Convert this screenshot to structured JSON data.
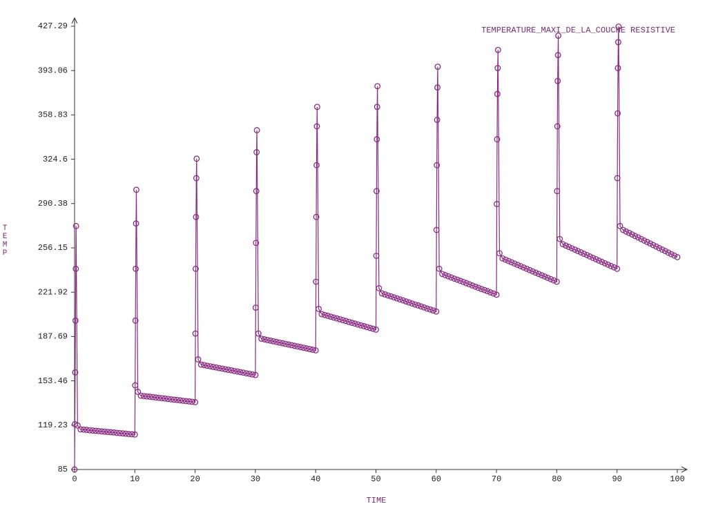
{
  "chart_data": {
    "type": "line",
    "title": "TEMPERATURE_MAXI_DE_LA_COUCHE RESISTIVE",
    "x_label": "TIME",
    "y_label": "TEMP",
    "xlim": [
      0,
      100
    ],
    "xticks": [
      0,
      10,
      20,
      30,
      40,
      50,
      60,
      70,
      80,
      90,
      100
    ],
    "ylim": [
      85,
      427.29
    ],
    "yticks": [
      85,
      119.23,
      153.46,
      187.69,
      221.92,
      256.15,
      290.38,
      324.6,
      358.83,
      393.06,
      427.29
    ],
    "x": [
      0,
      0.05,
      0.1,
      0.15,
      0.2,
      0.25,
      0.5,
      1,
      1.5,
      2,
      2.5,
      3,
      3.5,
      4,
      4.5,
      5,
      5.5,
      6,
      6.5,
      7,
      7.5,
      8,
      8.5,
      9,
      9.5,
      10,
      10.05,
      10.1,
      10.15,
      10.2,
      10.25,
      10.5,
      11,
      11.5,
      12,
      12.5,
      13,
      13.5,
      14,
      14.5,
      15,
      15.5,
      16,
      16.5,
      17,
      17.5,
      18,
      18.5,
      19,
      19.5,
      20,
      20.05,
      20.1,
      20.15,
      20.2,
      20.25,
      20.5,
      21,
      21.5,
      22,
      22.5,
      23,
      23.5,
      24,
      24.5,
      25,
      25.5,
      26,
      26.5,
      27,
      27.5,
      28,
      28.5,
      29,
      29.5,
      30,
      30.05,
      30.1,
      30.15,
      30.2,
      30.25,
      30.5,
      31,
      31.5,
      32,
      32.5,
      33,
      33.5,
      34,
      34.5,
      35,
      35.5,
      36,
      36.5,
      37,
      37.5,
      38,
      38.5,
      39,
      39.5,
      40,
      40.05,
      40.1,
      40.15,
      40.2,
      40.25,
      40.5,
      41,
      41.5,
      42,
      42.5,
      43,
      43.5,
      44,
      44.5,
      45,
      45.5,
      46,
      46.5,
      47,
      47.5,
      48,
      48.5,
      49,
      49.5,
      50,
      50.05,
      50.1,
      50.15,
      50.2,
      50.25,
      50.5,
      51,
      51.5,
      52,
      52.5,
      53,
      53.5,
      54,
      54.5,
      55,
      55.5,
      56,
      56.5,
      57,
      57.5,
      58,
      58.5,
      59,
      59.5,
      60,
      60.05,
      60.1,
      60.15,
      60.2,
      60.25,
      60.5,
      61,
      61.5,
      62,
      62.5,
      63,
      63.5,
      64,
      64.5,
      65,
      65.5,
      66,
      66.5,
      67,
      67.5,
      68,
      68.5,
      69,
      69.5,
      70,
      70.05,
      70.1,
      70.15,
      70.2,
      70.25,
      70.5,
      71,
      71.5,
      72,
      72.5,
      73,
      73.5,
      74,
      74.5,
      75,
      75.5,
      76,
      76.5,
      77,
      77.5,
      78,
      78.5,
      79,
      79.5,
      80,
      80.05,
      80.1,
      80.15,
      80.2,
      80.25,
      80.5,
      81,
      81.5,
      82,
      82.5,
      83,
      83.5,
      84,
      84.5,
      85,
      85.5,
      86,
      86.5,
      87,
      87.5,
      88,
      88.5,
      89,
      89.5,
      90,
      90.05,
      90.1,
      90.15,
      90.2,
      90.25,
      90.5,
      91,
      91.5,
      92,
      92.5,
      93,
      93.5,
      94,
      94.5,
      95,
      95.5,
      96,
      96.5,
      97,
      97.5,
      98,
      98.5,
      99,
      99.5,
      100
    ],
    "series": [
      {
        "name": "TEMPERATURE_MAXI_DE_LA_COUCHE RESISTIVE",
        "color": "#8a2a82",
        "values": [
          85,
          120,
          160,
          200,
          240,
          273,
          119,
          116,
          115.8,
          115.6,
          115.3,
          115.1,
          114.9,
          114.7,
          114.4,
          114.2,
          114,
          113.8,
          113.6,
          113.3,
          113.1,
          112.9,
          112.7,
          112.4,
          112.2,
          112,
          150,
          200,
          240,
          275,
          301,
          145,
          142,
          141.7,
          141.4,
          141.2,
          140.9,
          140.6,
          140.3,
          140.1,
          139.8,
          139.5,
          139.2,
          138.9,
          138.7,
          138.4,
          138.1,
          137.8,
          137.6,
          137.3,
          137,
          190,
          240,
          280,
          310,
          325,
          170,
          166,
          165.6,
          165.1,
          164.7,
          164.2,
          163.8,
          163.3,
          162.9,
          162.4,
          162,
          161.6,
          161.1,
          160.7,
          160.2,
          159.8,
          159.3,
          158.9,
          158.4,
          158,
          210,
          260,
          300,
          330,
          347,
          190,
          186,
          185.5,
          185,
          184.5,
          184,
          183.5,
          183,
          182.5,
          182,
          181.5,
          181,
          180.5,
          180,
          179.5,
          179,
          178.5,
          178,
          177.5,
          177,
          230,
          280,
          320,
          350,
          365,
          209,
          205,
          204.3,
          203.7,
          203,
          202.3,
          201.7,
          201,
          200.3,
          199.7,
          199,
          198.3,
          197.7,
          197,
          196.3,
          195.7,
          195,
          194.3,
          193.7,
          193,
          250,
          300,
          340,
          365,
          381,
          225,
          221,
          220.2,
          219.4,
          218.7,
          217.9,
          217.1,
          216.3,
          215.6,
          214.8,
          214,
          213.2,
          212.4,
          211.7,
          210.9,
          210.1,
          209.3,
          208.6,
          207.8,
          207,
          270,
          320,
          355,
          380,
          396,
          240,
          236,
          235.1,
          234.2,
          233.3,
          232.4,
          231.6,
          230.7,
          229.8,
          228.9,
          228,
          227.1,
          226.2,
          225.3,
          224.4,
          223.6,
          222.7,
          221.8,
          220.9,
          220,
          290,
          340,
          375,
          395,
          409,
          252,
          248,
          247,
          246,
          245,
          244,
          243,
          242,
          241,
          240,
          239,
          238,
          237,
          236,
          235,
          234,
          233,
          232,
          231,
          230,
          300,
          350,
          385,
          405,
          420,
          263,
          259,
          257.9,
          256.9,
          255.8,
          254.8,
          253.7,
          252.7,
          251.6,
          250.6,
          249.5,
          248.4,
          247.4,
          246.3,
          245.3,
          244.2,
          243.2,
          242.1,
          241.1,
          240,
          310,
          360,
          395,
          415,
          427,
          273,
          270,
          268.8,
          267.7,
          266.5,
          265.3,
          264.2,
          263,
          261.8,
          260.7,
          259.5,
          258.3,
          257.2,
          256,
          254.8,
          253.7,
          252.5,
          251.3,
          250.2,
          249
        ]
      }
    ]
  }
}
